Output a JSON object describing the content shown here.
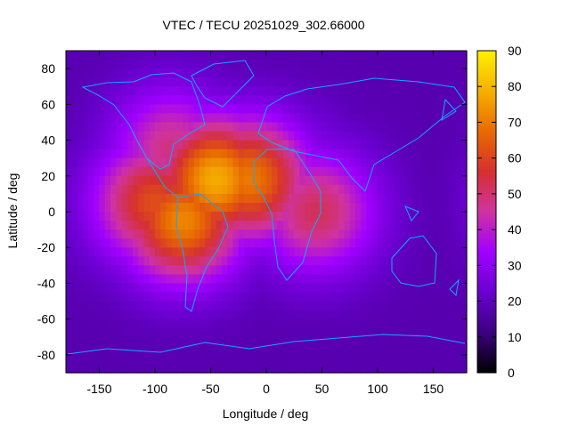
{
  "chart_data": {
    "type": "heatmap",
    "title": "VTEC / TECU 20251029_302.66000",
    "xlabel": "Longitude / deg",
    "ylabel": "Latitude / deg",
    "xlim": [
      -180,
      180
    ],
    "ylim": [
      -90,
      90
    ],
    "x_ticks": [
      -150,
      -100,
      -50,
      0,
      50,
      100,
      150
    ],
    "y_ticks": [
      -80,
      -60,
      -40,
      -20,
      0,
      20,
      40,
      60,
      80
    ],
    "colorbar": {
      "label": "",
      "range": [
        0,
        90
      ],
      "ticks": [
        0,
        10,
        20,
        30,
        40,
        50,
        60,
        70,
        80,
        90
      ],
      "palette": [
        "#000000",
        "#3b007f",
        "#6a00d0",
        "#a000ff",
        "#cf33a0",
        "#d53030",
        "#e86a00",
        "#f6b000",
        "#fff000"
      ]
    },
    "blobs_description_lon_lat_peak": [
      {
        "lon": -75,
        "lat": -5,
        "peak": 72
      },
      {
        "lon": -45,
        "lat": 18,
        "peak": 78
      },
      {
        "lon": -15,
        "lat": 18,
        "peak": 70
      },
      {
        "lon": -100,
        "lat": 5,
        "peak": 62
      },
      {
        "lon": -85,
        "lat": 35,
        "peak": 48
      },
      {
        "lon": 45,
        "lat": 0,
        "peak": 52
      },
      {
        "lon": 15,
        "lat": 20,
        "peak": 38
      }
    ],
    "background_tecu": 18
  }
}
